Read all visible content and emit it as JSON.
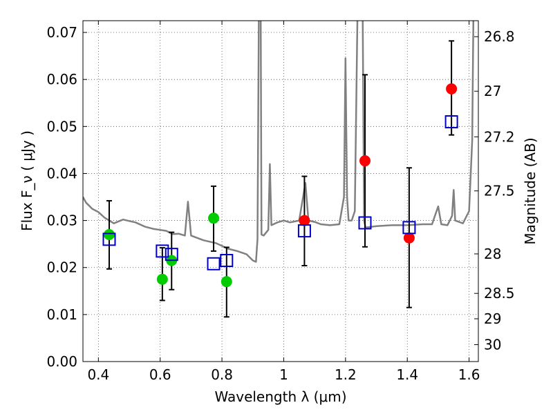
{
  "chart_data": {
    "type": "scatter",
    "xlabel": "Wavelength  λ (μm)",
    "ylabel": "Flux  F_ν  ( μJy )",
    "y2label": "Magnitude (AB)",
    "xlim": [
      0.35,
      1.63
    ],
    "ylim": [
      0.0,
      0.0725
    ],
    "grid": true,
    "x_ticks": [
      0.4,
      0.6,
      0.8,
      1.0,
      1.2,
      1.4,
      1.6
    ],
    "x_tick_labels": [
      "0.4",
      "0.6",
      "0.8",
      "1",
      "1.2",
      "1.4",
      "1.6"
    ],
    "y_ticks": [
      0.0,
      0.01,
      0.02,
      0.03,
      0.04,
      0.05,
      0.06,
      0.07
    ],
    "y_tick_labels": [
      "0.00",
      "0.01",
      "0.02",
      "0.03",
      "0.04",
      "0.05",
      "0.06",
      "0.07"
    ],
    "y2_ticks": [
      {
        "label": "26.8",
        "flux": 0.0691
      },
      {
        "label": "27",
        "flux": 0.0575
      },
      {
        "label": "27.2",
        "flux": 0.0478
      },
      {
        "label": "27.5",
        "flux": 0.0363
      },
      {
        "label": "28",
        "flux": 0.0229
      },
      {
        "label": "28.5",
        "flux": 0.0145
      },
      {
        "label": "29",
        "flux": 0.0091
      },
      {
        "label": "30",
        "flux": 0.0036
      }
    ],
    "template_spectrum": {
      "color": "#808080",
      "points": [
        [
          0.35,
          0.035
        ],
        [
          0.36,
          0.0338
        ],
        [
          0.38,
          0.0325
        ],
        [
          0.4,
          0.0318
        ],
        [
          0.42,
          0.0306
        ],
        [
          0.45,
          0.0294
        ],
        [
          0.48,
          0.0302
        ],
        [
          0.5,
          0.0299
        ],
        [
          0.52,
          0.0296
        ],
        [
          0.55,
          0.0287
        ],
        [
          0.58,
          0.0282
        ],
        [
          0.6,
          0.028
        ],
        [
          0.62,
          0.0278
        ],
        [
          0.64,
          0.0271
        ],
        [
          0.66,
          0.0272
        ],
        [
          0.68,
          0.0268
        ],
        [
          0.69,
          0.034
        ],
        [
          0.7,
          0.0268
        ],
        [
          0.74,
          0.0258
        ],
        [
          0.78,
          0.0252
        ],
        [
          0.8,
          0.0246
        ],
        [
          0.82,
          0.024
        ],
        [
          0.85,
          0.0235
        ],
        [
          0.88,
          0.0228
        ],
        [
          0.9,
          0.0215
        ],
        [
          0.91,
          0.0212
        ],
        [
          0.915,
          0.026
        ],
        [
          0.92,
          0.08
        ],
        [
          0.925,
          0.08
        ],
        [
          0.928,
          0.027
        ],
        [
          0.935,
          0.0268
        ],
        [
          0.95,
          0.028
        ],
        [
          0.955,
          0.042
        ],
        [
          0.96,
          0.029
        ],
        [
          0.98,
          0.0296
        ],
        [
          1.0,
          0.03
        ],
        [
          1.02,
          0.0296
        ],
        [
          1.05,
          0.03
        ],
        [
          1.07,
          0.038
        ],
        [
          1.08,
          0.03
        ],
        [
          1.1,
          0.0297
        ],
        [
          1.12,
          0.0292
        ],
        [
          1.15,
          0.029
        ],
        [
          1.18,
          0.0292
        ],
        [
          1.195,
          0.035
        ],
        [
          1.2,
          0.0645
        ],
        [
          1.205,
          0.035
        ],
        [
          1.21,
          0.03
        ],
        [
          1.22,
          0.03
        ],
        [
          1.23,
          0.032
        ],
        [
          1.24,
          0.08
        ],
        [
          1.255,
          0.08
        ],
        [
          1.26,
          0.03
        ],
        [
          1.265,
          0.0285
        ],
        [
          1.3,
          0.0288
        ],
        [
          1.35,
          0.029
        ],
        [
          1.4,
          0.029
        ],
        [
          1.45,
          0.0292
        ],
        [
          1.48,
          0.0292
        ],
        [
          1.5,
          0.033
        ],
        [
          1.51,
          0.0292
        ],
        [
          1.53,
          0.029
        ],
        [
          1.545,
          0.031
        ],
        [
          1.55,
          0.0365
        ],
        [
          1.555,
          0.03
        ],
        [
          1.58,
          0.0294
        ],
        [
          1.6,
          0.032
        ],
        [
          1.61,
          0.047
        ],
        [
          1.615,
          0.08
        ]
      ]
    },
    "series": [
      {
        "marker": "circle",
        "color": "#00cc00",
        "points": [
          {
            "x": 0.435,
            "y": 0.027
          },
          {
            "x": 0.607,
            "y": 0.0175
          },
          {
            "x": 0.637,
            "y": 0.0215
          },
          {
            "x": 0.773,
            "y": 0.0305
          },
          {
            "x": 0.815,
            "y": 0.017
          }
        ]
      },
      {
        "marker": "circle",
        "color": "#ff0000",
        "points": [
          {
            "x": 1.067,
            "y": 0.03
          },
          {
            "x": 1.263,
            "y": 0.0427
          },
          {
            "x": 1.406,
            "y": 0.0263
          },
          {
            "x": 1.543,
            "y": 0.058
          }
        ]
      },
      {
        "marker": "open-square",
        "color": "#0000cc",
        "points": [
          {
            "x": 0.435,
            "y": 0.026
          },
          {
            "x": 0.607,
            "y": 0.0235
          },
          {
            "x": 0.637,
            "y": 0.0228
          },
          {
            "x": 0.773,
            "y": 0.0208
          },
          {
            "x": 0.815,
            "y": 0.0215
          },
          {
            "x": 1.067,
            "y": 0.0278
          },
          {
            "x": 1.263,
            "y": 0.0295
          },
          {
            "x": 1.406,
            "y": 0.0285
          },
          {
            "x": 1.543,
            "y": 0.051
          }
        ]
      }
    ],
    "error_bars": [
      {
        "x": 0.435,
        "low": 0.0197,
        "high": 0.0342
      },
      {
        "x": 0.607,
        "low": 0.013,
        "high": 0.0242
      },
      {
        "x": 0.637,
        "low": 0.0153,
        "high": 0.0275
      },
      {
        "x": 0.773,
        "low": 0.0235,
        "high": 0.0373
      },
      {
        "x": 0.815,
        "low": 0.0095,
        "high": 0.0243
      },
      {
        "x": 1.067,
        "low": 0.0204,
        "high": 0.0394
      },
      {
        "x": 1.263,
        "low": 0.0244,
        "high": 0.061
      },
      {
        "x": 1.406,
        "low": 0.0115,
        "high": 0.0412
      },
      {
        "x": 1.543,
        "low": 0.0482,
        "high": 0.0682
      }
    ]
  }
}
